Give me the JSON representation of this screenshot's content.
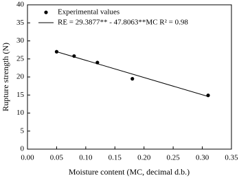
{
  "chart_data": {
    "type": "scatter",
    "xlabel": "Moisture content (MC, decimal d.b.)",
    "ylabel": "Rupture strength (N)",
    "xlim": [
      0,
      0.35
    ],
    "xticks": [
      {
        "value": 0,
        "label": "0.00"
      },
      {
        "value": 0.05,
        "label": "0.05"
      },
      {
        "value": 0.1,
        "label": "0.10"
      },
      {
        "value": 0.15,
        "label": "0.15"
      },
      {
        "value": 0.2,
        "label": "0.20"
      },
      {
        "value": 0.25,
        "label": "0.25"
      },
      {
        "value": 0.3,
        "label": "0.30"
      },
      {
        "value": 0.35,
        "label": "0.35"
      }
    ],
    "ylim": [
      0,
      40
    ],
    "yticks": [
      0,
      5,
      10,
      15,
      20,
      25,
      30,
      35,
      40
    ],
    "legend": "top-left",
    "series": [
      {
        "name": "Experimental values",
        "color": "#000000",
        "mode": "markers",
        "x": [
          0.05,
          0.08,
          0.12,
          0.18,
          0.31
        ],
        "values": [
          27.0,
          25.8,
          24.0,
          19.5,
          14.9
        ]
      },
      {
        "name": "RE = 29.3877** - 47.8063**MC   R² = 0.98",
        "color": "#000000",
        "mode": "line",
        "x": [
          0.05,
          0.31
        ],
        "values": [
          27.0,
          14.6
        ]
      }
    ]
  }
}
